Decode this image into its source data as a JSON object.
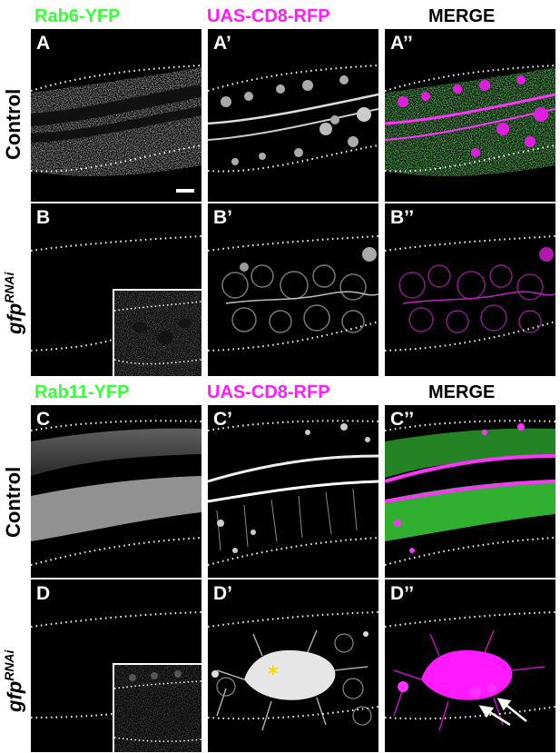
{
  "headers_top": {
    "col1": "Rab6-YFP",
    "col2": "UAS-CD8-RFP",
    "col3": "MERGE"
  },
  "headers_bottom": {
    "col1": "Rab11-YFP",
    "col2": "UAS-CD8-RFP",
    "col3": "MERGE"
  },
  "row_labels": {
    "row1": "Control",
    "row2_base": "gfp",
    "row2_sup": "RNAi",
    "row3": "Control",
    "row4_base": "gfp",
    "row4_sup": "RNAi"
  },
  "panels": {
    "A": "A",
    "A1": "A’",
    "A2": "A’’",
    "B": "B",
    "B1": "B’",
    "B2": "B’’",
    "C": "C",
    "C1": "C’",
    "C2": "C’’",
    "D": "D",
    "D1": "D’",
    "D2": "D’’"
  },
  "annotations": {
    "asterisk": "*"
  },
  "colors": {
    "green": "#39ff39",
    "magenta": "#ff1aff",
    "black": "#000000",
    "white": "#ffffff",
    "asterisk": "#ffd400"
  }
}
